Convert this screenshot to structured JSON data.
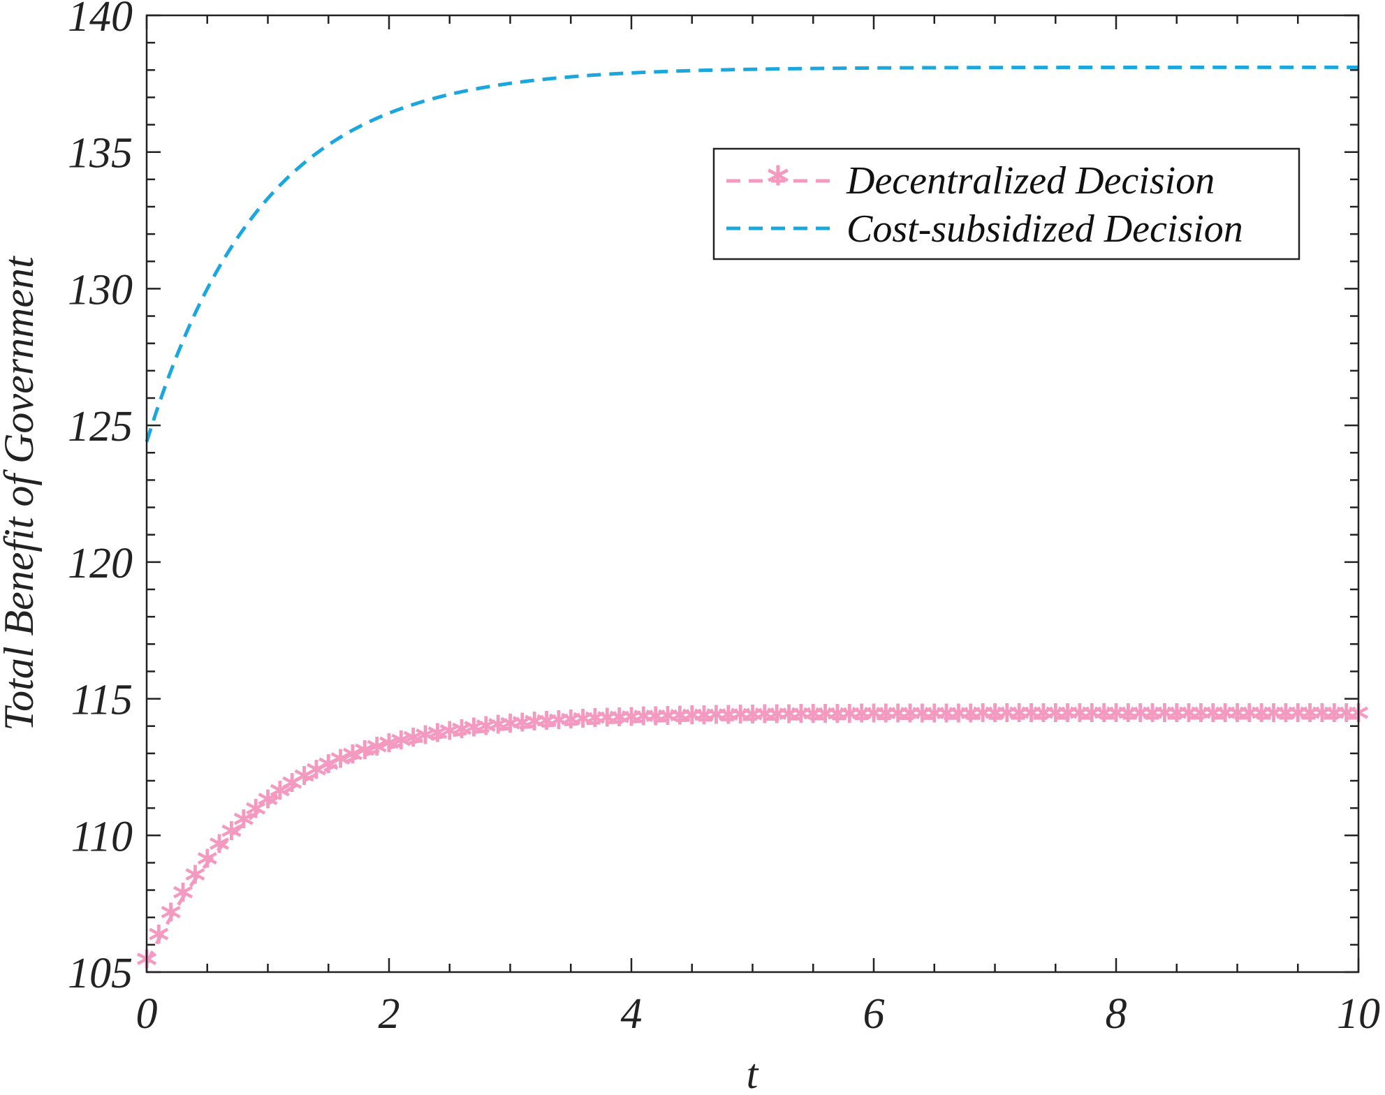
{
  "chart_data": {
    "type": "line",
    "title": "",
    "xlabel": "t",
    "ylabel": "Total Benefit of Government",
    "xlim": [
      0,
      10
    ],
    "ylim": [
      105,
      140
    ],
    "xticks": [
      0,
      2,
      4,
      6,
      8,
      10
    ],
    "yticks": [
      105,
      110,
      115,
      120,
      125,
      130,
      135,
      140
    ],
    "grid": false,
    "legend_position": "top-right",
    "series": [
      {
        "name": "Decentralized Decision",
        "color": "#f49ac1",
        "style": "dashed-asterisk",
        "start": 105.3,
        "asymptote": 114.3,
        "rate": 1.05,
        "x": [
          0,
          0.5,
          1,
          1.5,
          2,
          2.5,
          3,
          3.5,
          4,
          5,
          6,
          7,
          8,
          9,
          10
        ],
        "values": [
          105.3,
          108.5,
          110.9,
          112.4,
          113.2,
          113.7,
          114.0,
          114.1,
          114.2,
          114.3,
          114.3,
          114.3,
          114.3,
          114.3,
          114.3
        ]
      },
      {
        "name": "Cost-subsidized Decision",
        "color": "#1ba7de",
        "style": "dashed",
        "start": 124.4,
        "asymptote": 138.1,
        "rate": 1.05,
        "x": [
          0,
          0.5,
          1,
          1.5,
          2,
          2.5,
          3,
          3.5,
          4,
          5,
          6,
          7,
          8,
          9,
          10
        ],
        "values": [
          124.4,
          129.3,
          132.7,
          135.2,
          136.3,
          137.1,
          137.5,
          137.8,
          137.9,
          138.1,
          138.1,
          138.1,
          138.1,
          138.1,
          138.1
        ]
      }
    ]
  }
}
